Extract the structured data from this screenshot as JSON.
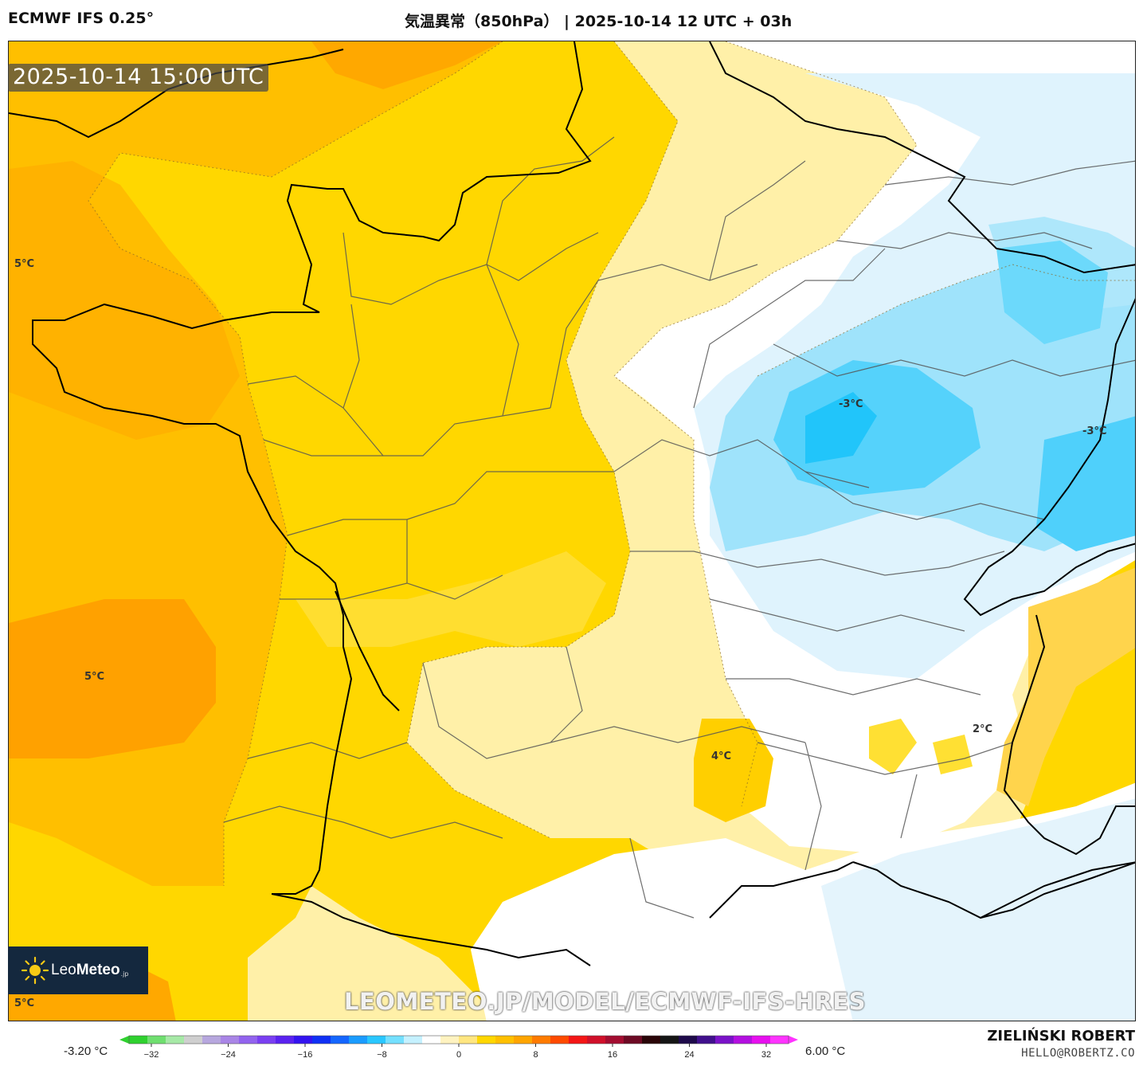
{
  "header": {
    "model": "ECMWF IFS 0.25°",
    "title": "気温異常（850hPa） | 2025-10-14 12 UTC + 03h"
  },
  "valid_time": "2025-10-14 15:00 UTC",
  "map_labels": [
    {
      "text": "5°C"
    },
    {
      "text": "5°C"
    },
    {
      "text": "5°C"
    },
    {
      "text": "-3°C"
    },
    {
      "text": "-3°C"
    },
    {
      "text": "4°C"
    },
    {
      "text": "2°C"
    }
  ],
  "logo": {
    "brand_light": "Leo",
    "brand_bold": "Meteo",
    "suffix": ".jp"
  },
  "watermark": "LEOMETEO.JP/MODEL/ECMWF-IFS-HRES",
  "colorbar": {
    "min_label": "-3.20 °C",
    "max_label": "6.00 °C",
    "ticks": [
      "−32",
      "−24",
      "−16",
      "−8",
      "0",
      "8",
      "16",
      "24",
      "32"
    ],
    "colors": [
      "#2fd12f",
      "#6fdf6f",
      "#a6e9a6",
      "#cfcfcf",
      "#b7a7de",
      "#a985e6",
      "#9263ee",
      "#7a3ff2",
      "#5a22f0",
      "#3313f0",
      "#1030f5",
      "#1466ff",
      "#1a9cff",
      "#29c7ff",
      "#74e0ff",
      "#c5f1ff",
      "#ffffff",
      "#fff3c0",
      "#ffe680",
      "#ffd700",
      "#ffc000",
      "#ffa500",
      "#ff7b00",
      "#ff4a00",
      "#f41616",
      "#d0102a",
      "#a30d30",
      "#6d0a24",
      "#2a0508",
      "#151515",
      "#1e0a4a",
      "#40108c",
      "#7a12c8",
      "#b30fe0",
      "#e70fef",
      "#ff33ff"
    ]
  },
  "author": {
    "name": "ZIELIŃSKI ROBERT",
    "email": "HELLO@ROBERTZ.CO"
  }
}
